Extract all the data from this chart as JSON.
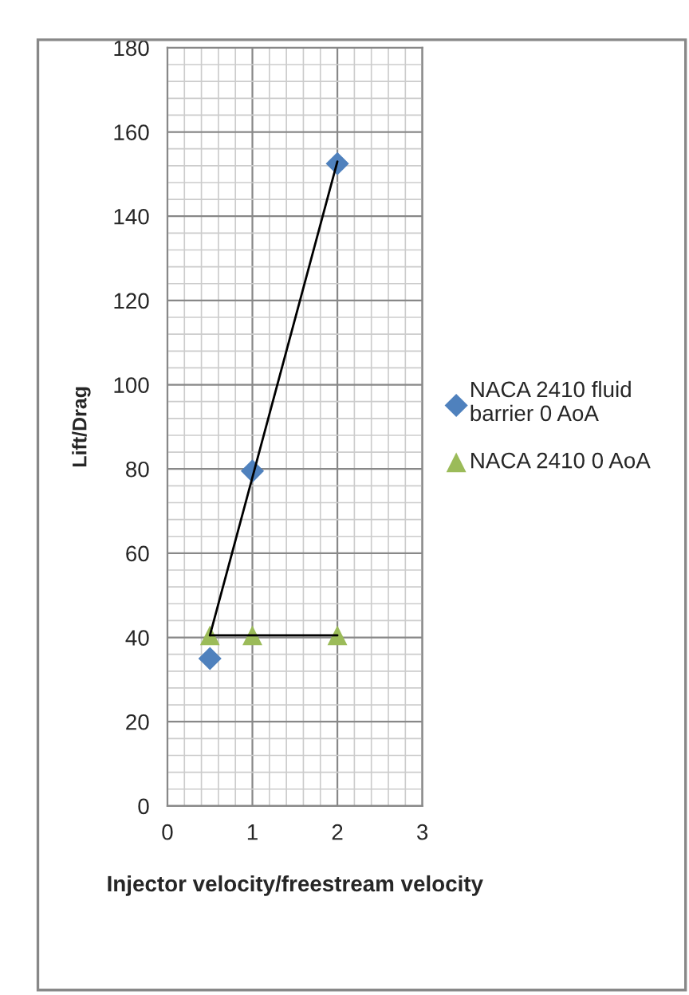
{
  "chart_data": {
    "type": "scatter",
    "xlabel": "Injector velocity/freestream velocity",
    "ylabel": "Lift/Drag",
    "xlim": [
      0,
      3
    ],
    "xticks": [
      0,
      1,
      2,
      3
    ],
    "ylim": [
      0,
      180
    ],
    "yticks": [
      0,
      20,
      40,
      60,
      80,
      100,
      120,
      140,
      160,
      180
    ],
    "grid": true,
    "legend": "right",
    "series": [
      {
        "name": "NACA 2410 fluid barrier 0 AoA",
        "color": "#4f81bd",
        "marker": "diamond",
        "x": [
          0.5,
          1,
          2
        ],
        "values": [
          35,
          79.5,
          152.5
        ]
      },
      {
        "name": "NACA 2410 0 AoA",
        "color": "#9bbb59",
        "marker": "triangle",
        "x": [
          0.5,
          1,
          2
        ],
        "values": [
          40.5,
          40.5,
          40.5
        ]
      },
      {
        "type": "line",
        "color": "#000000",
        "marker": "none",
        "x": [
          0.5,
          2
        ],
        "values": [
          40.5,
          153
        ]
      },
      {
        "type": "line",
        "color": "#000000",
        "marker": "none",
        "x": [
          0.5,
          2
        ],
        "values": [
          40.5,
          40.5
        ]
      }
    ]
  }
}
